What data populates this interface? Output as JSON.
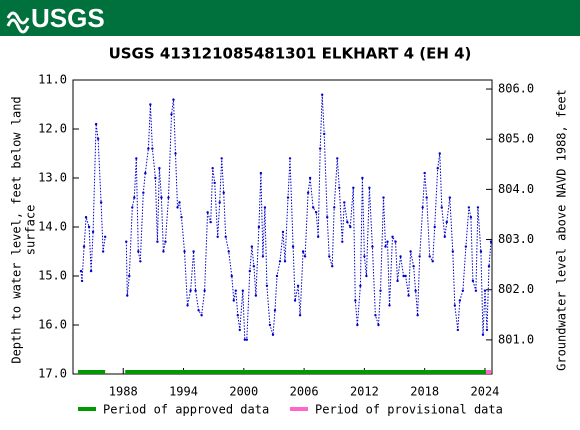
{
  "header": {
    "logo": "USGS"
  },
  "chart_data": {
    "type": "line",
    "title": "USGS 413121085481301 ELKHART 4 (EH 4)",
    "ylabel": [
      "Depth to water level, feet below land",
      "surface"
    ],
    "y2label": "Groundwater level above NAVD 1988, feet",
    "xlim": [
      1983.0,
      2024.7
    ],
    "xticks": [
      1988,
      1994,
      2000,
      2006,
      2012,
      2018,
      2024
    ],
    "ylim": [
      11,
      17
    ],
    "y_inverted": true,
    "yticks": [
      {
        "value": 11,
        "label": "11.0"
      },
      {
        "value": 12,
        "label": "12.0"
      },
      {
        "value": 13,
        "label": "13.0"
      },
      {
        "value": 14,
        "label": "14.0"
      },
      {
        "value": 15,
        "label": "15.0"
      },
      {
        "value": 16,
        "label": "16.0"
      },
      {
        "value": 17,
        "label": "17.0"
      }
    ],
    "y2lim": [
      800.32,
      806.18
    ],
    "y2ticks": [
      {
        "value": 801,
        "label": "801.0"
      },
      {
        "value": 802,
        "label": "802.0"
      },
      {
        "value": 803,
        "label": "803.0"
      },
      {
        "value": 804,
        "label": "804.0"
      },
      {
        "value": 805,
        "label": "805.0"
      },
      {
        "value": 806,
        "label": "806.0"
      }
    ],
    "series": [
      {
        "color": "#0000cc",
        "x": [
          1983.8,
          1983.9,
          1984.1,
          1984.3,
          1984.6,
          1984.8,
          1985.0,
          1985.3,
          1985.5,
          1985.8,
          1986.0,
          1986.2,
          1987.2,
          1988.3,
          1988.4,
          1988.6,
          1988.9,
          1989.1,
          1989.3,
          1989.5,
          1989.7,
          1990.0,
          1990.2,
          1990.5,
          1990.7,
          1990.9,
          1991.2,
          1991.4,
          1991.6,
          1991.8,
          1992.0,
          1992.2,
          1992.5,
          1992.8,
          1993.0,
          1993.2,
          1993.4,
          1993.6,
          1993.8,
          1994.1,
          1994.4,
          1994.7,
          1995.0,
          1995.2,
          1995.5,
          1995.8,
          1996.1,
          1996.4,
          1996.7,
          1996.9,
          1997.1,
          1997.4,
          1997.6,
          1997.8,
          1998.0,
          1998.2,
          1998.5,
          1998.8,
          1999.0,
          1999.2,
          1999.4,
          1999.6,
          1999.9,
          2000.1,
          2000.3,
          2000.6,
          2000.8,
          2001.0,
          2001.2,
          2001.5,
          2001.7,
          2001.9,
          2002.1,
          2002.3,
          2002.6,
          2002.9,
          2003.1,
          2003.3,
          2003.6,
          2003.9,
          2004.1,
          2004.4,
          2004.6,
          2004.9,
          2005.1,
          2005.4,
          2005.6,
          2005.9,
          2006.1,
          2006.4,
          2006.6,
          2006.9,
          2007.2,
          2007.4,
          2007.6,
          2007.8,
          2008.0,
          2008.3,
          2008.5,
          2008.8,
          2009.0,
          2009.3,
          2009.5,
          2009.8,
          2010.0,
          2010.3,
          2010.6,
          2010.9,
          2011.1,
          2011.3,
          2011.6,
          2011.8,
          2012.0,
          2012.2,
          2012.5,
          2012.8,
          2013.1,
          2013.4,
          2013.6,
          2013.9,
          2014.1,
          2014.3,
          2014.5,
          2014.8,
          2015.1,
          2015.3,
          2015.6,
          2015.9,
          2016.1,
          2016.4,
          2016.6,
          2016.9,
          2017.1,
          2017.3,
          2017.5,
          2017.8,
          2018.0,
          2018.2,
          2018.5,
          2018.8,
          2019.0,
          2019.3,
          2019.5,
          2019.7,
          2020.0,
          2020.2,
          2020.5,
          2020.8,
          2021.0,
          2021.3,
          2021.5,
          2021.8,
          2022.1,
          2022.4,
          2022.6,
          2022.8,
          2023.1,
          2023.3,
          2023.6,
          2023.8,
          2024.0,
          2024.2,
          2024.4,
          2024.6
        ],
        "values": [
          14.9,
          15.1,
          14.4,
          13.8,
          14.0,
          14.9,
          14.1,
          11.9,
          12.2,
          13.5,
          14.5,
          14.2,
          null,
          14.3,
          15.4,
          15.0,
          13.6,
          13.4,
          12.6,
          14.5,
          14.7,
          13.3,
          12.9,
          12.4,
          11.5,
          12.4,
          13.0,
          14.3,
          12.8,
          13.4,
          14.5,
          14.3,
          13.4,
          11.7,
          11.4,
          12.5,
          13.6,
          13.5,
          13.8,
          14.5,
          15.6,
          15.3,
          14.5,
          15.3,
          15.7,
          15.8,
          15.3,
          13.7,
          13.9,
          12.8,
          13.1,
          14.2,
          13.5,
          12.6,
          13.3,
          14.2,
          14.5,
          15.0,
          15.5,
          15.3,
          15.8,
          16.1,
          15.3,
          16.3,
          16.3,
          14.9,
          14.4,
          14.8,
          15.4,
          14.0,
          12.9,
          14.6,
          13.6,
          15.2,
          16.0,
          16.2,
          15.7,
          15.0,
          14.7,
          14.1,
          14.7,
          13.4,
          12.6,
          14.4,
          15.5,
          15.2,
          15.8,
          14.5,
          14.6,
          13.3,
          13.0,
          13.6,
          13.7,
          14.2,
          12.4,
          11.3,
          12.1,
          13.8,
          14.6,
          14.8,
          13.6,
          12.6,
          13.2,
          14.3,
          13.5,
          13.9,
          14.0,
          13.2,
          15.5,
          16.0,
          15.2,
          13.0,
          14.6,
          15.0,
          13.2,
          14.4,
          15.8,
          16.0,
          15.3,
          13.4,
          14.4,
          14.3,
          15.6,
          14.2,
          14.3,
          15.1,
          14.6,
          15.0,
          15.0,
          15.4,
          14.5,
          14.8,
          15.3,
          15.8,
          14.6,
          13.6,
          12.9,
          13.4,
          14.6,
          14.7,
          14.0,
          12.8,
          12.5,
          13.6,
          14.2,
          13.9,
          13.4,
          14.5,
          15.6,
          16.1,
          15.5,
          15.3,
          14.4,
          13.6,
          13.8,
          15.1,
          15.3,
          13.6,
          14.5,
          16.2,
          15.3,
          16.1,
          14.8,
          14.3
        ]
      }
    ],
    "periods": [
      {
        "name": "Period of approved data",
        "color": "#009900",
        "ranges": [
          [
            1983.5,
            1986.2
          ],
          [
            1988.2,
            2024.1
          ]
        ]
      },
      {
        "name": "Period of provisional data",
        "color": "#ff66cc",
        "ranges": [
          [
            2024.1,
            2024.6
          ]
        ]
      }
    ]
  }
}
